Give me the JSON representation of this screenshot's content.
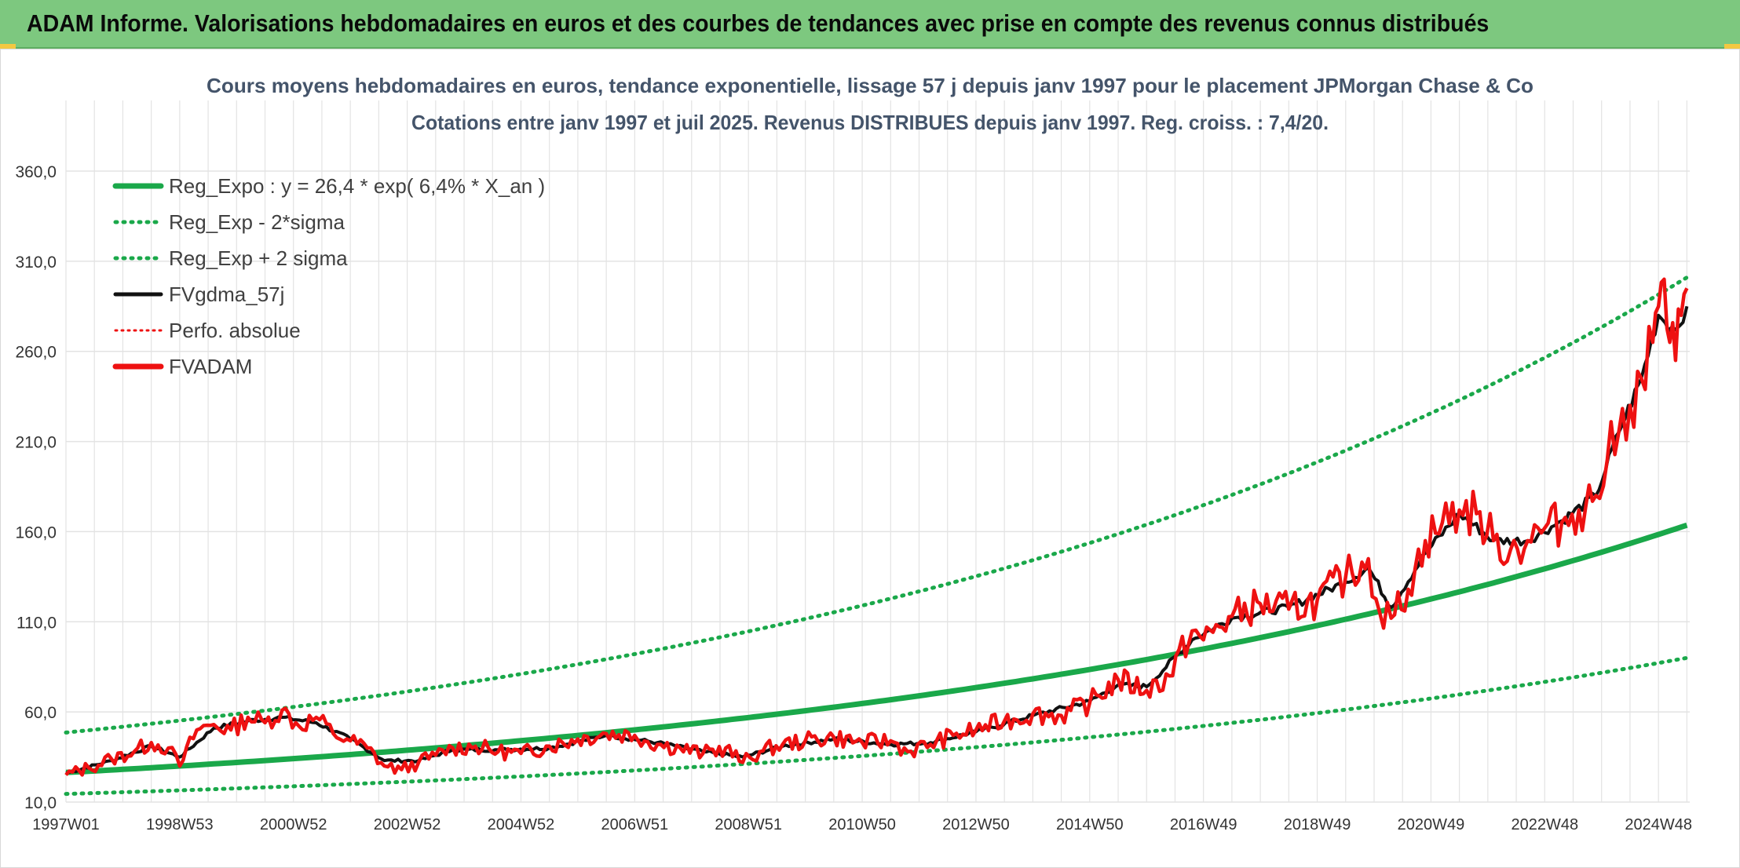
{
  "header": {
    "title": "ADAM Informe. Valorisations hebdomadaires en euros et des courbes de tendances avec prise en compte des revenus connus distribués"
  },
  "colors": {
    "header_bg": "#7dc87f",
    "trend_green": "#1aa84a",
    "series_black": "#111111",
    "series_red": "#ee1111",
    "grid": "#e3e3e3"
  },
  "chart_data": {
    "type": "line",
    "title": "Cours moyens hebdomadaires en euros, tendance exponentielle, lissage 57 j depuis janv 1997 pour le placement JPMorgan Chase & Co",
    "subtitle": "Cotations entre janv 1997 et juil 2025. Revenus DISTRIBUES depuis janv 1997. Reg. croiss. : 7,4/20.",
    "xlabel": "",
    "ylabel": "",
    "ylim": [
      10,
      360
    ],
    "y_ticks": [
      "360,0",
      "310,0",
      "260,0",
      "210,0",
      "160,0",
      "110,0",
      "60,0",
      "10,0"
    ],
    "x_range": [
      1997.0,
      2025.55
    ],
    "x_tick_labels": [
      "1997W01",
      "1998W53",
      "2000W52",
      "2002W52",
      "2004W52",
      "2006W51",
      "2008W51",
      "2010W50",
      "2012W50",
      "2014W50",
      "2016W49",
      "2018W49",
      "2020W49",
      "2022W48",
      "2024W48"
    ],
    "grid": true,
    "legend_position": "top-left",
    "legend": [
      {
        "label": "Reg_Expo : y = 26,4 * exp( 6,4% *  X_an )",
        "style": "solid-green"
      },
      {
        "label": "Reg_Exp - 2*sigma",
        "style": "dotted-green"
      },
      {
        "label": "Reg_Exp + 2 sigma",
        "style": "dotted-green"
      },
      {
        "label": "FVgdma_57j",
        "style": "solid-black"
      },
      {
        "label": "Perfo. absolue",
        "style": "dotted-red"
      },
      {
        "label": "FVADAM",
        "style": "solid-red"
      }
    ],
    "regression": {
      "a": 26.4,
      "rate": 0.064,
      "lower_factor": 0.55,
      "upper_factor": 1.84
    },
    "series": [
      {
        "name": "FVADAM",
        "x": [
          1997.0,
          1997.4,
          1997.8,
          1998.2,
          1998.5,
          1998.8,
          1999.0,
          1999.3,
          1999.6,
          1999.9,
          2000.2,
          2000.5,
          2000.8,
          2001.1,
          2001.4,
          2001.7,
          2002.0,
          2002.3,
          2002.6,
          2002.9,
          2003.2,
          2003.5,
          2003.8,
          2004.2,
          2004.6,
          2005.0,
          2005.5,
          2006.0,
          2006.5,
          2007.0,
          2007.4,
          2007.8,
          2008.2,
          2008.6,
          2008.9,
          2009.2,
          2009.6,
          2010.0,
          2010.5,
          2011.0,
          2011.5,
          2011.8,
          2012.2,
          2012.6,
          2013.0,
          2013.5,
          2014.0,
          2014.5,
          2015.0,
          2015.5,
          2016.0,
          2016.4,
          2016.8,
          2017.0,
          2017.5,
          2018.0,
          2018.5,
          2019.0,
          2019.5,
          2019.9,
          2020.1,
          2020.3,
          2020.6,
          2020.9,
          2021.2,
          2021.5,
          2021.8,
          2022.1,
          2022.4,
          2022.7,
          2023.0,
          2023.3,
          2023.6,
          2023.9,
          2024.1,
          2024.3,
          2024.5,
          2024.7,
          2024.9,
          2025.0,
          2025.1,
          2025.2,
          2025.3,
          2025.4,
          2025.5
        ],
        "y": [
          25,
          29,
          34,
          38,
          43,
          40,
          30,
          50,
          53,
          50,
          57,
          54,
          61,
          52,
          57,
          48,
          44,
          40,
          30,
          28,
          32,
          36,
          40,
          41,
          38,
          37,
          41,
          45,
          48,
          47,
          42,
          40,
          37,
          40,
          32,
          38,
          42,
          44,
          46,
          43,
          44,
          38,
          42,
          47,
          50,
          55,
          59,
          58,
          65,
          78,
          72,
          80,
          105,
          100,
          113,
          120,
          117,
          122,
          135,
          145,
          115,
          112,
          128,
          155,
          165,
          172,
          170,
          155,
          150,
          155,
          162,
          165,
          172,
          180,
          200,
          215,
          230,
          245,
          265,
          285,
          300,
          265,
          255,
          280,
          295
        ]
      },
      {
        "name": "FVgdma_57j",
        "x": [
          1997.0,
          1997.8,
          1998.5,
          1999.0,
          1999.6,
          2000.2,
          2000.8,
          2001.4,
          2002.0,
          2002.6,
          2003.2,
          2003.8,
          2004.6,
          2005.5,
          2006.5,
          2007.4,
          2008.2,
          2008.9,
          2009.6,
          2010.5,
          2011.5,
          2012.2,
          2013.0,
          2014.0,
          2015.0,
          2015.5,
          2016.0,
          2016.8,
          2017.5,
          2018.5,
          2019.5,
          2019.9,
          2020.3,
          2020.9,
          2021.5,
          2022.1,
          2022.7,
          2023.3,
          2023.9,
          2024.3,
          2024.7,
          2025.0,
          2025.3,
          2025.5
        ],
        "y": [
          26,
          33,
          41,
          35,
          51,
          55,
          57,
          54,
          45,
          33,
          33,
          39,
          39,
          40,
          47,
          43,
          38,
          35,
          41,
          45,
          42,
          43,
          49,
          58,
          66,
          75,
          74,
          100,
          112,
          118,
          132,
          140,
          118,
          148,
          170,
          155,
          155,
          166,
          180,
          215,
          245,
          280,
          272,
          285
        ]
      }
    ]
  }
}
